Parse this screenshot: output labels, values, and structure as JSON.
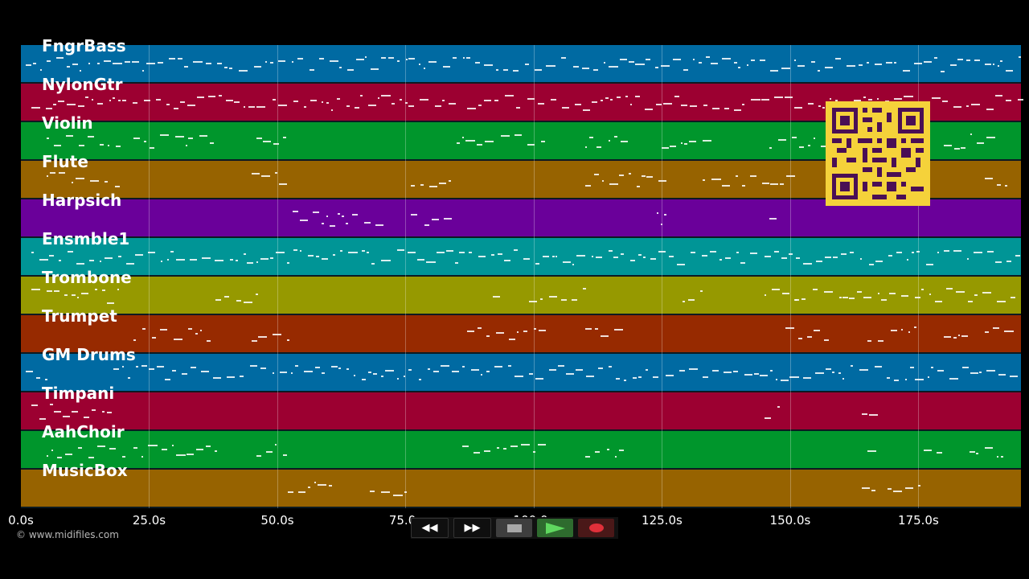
{
  "tracks": [
    {
      "name": "FngrBass",
      "color": "#006aa2"
    },
    {
      "name": "NylonGtr",
      "color": "#9c0031"
    },
    {
      "name": "Violin",
      "color": "#00962c"
    },
    {
      "name": "Flute",
      "color": "#976300"
    },
    {
      "name": "Harpsich",
      "color": "#6a009a"
    },
    {
      "name": "Ensmble1",
      "color": "#009596"
    },
    {
      "name": "Trombone",
      "color": "#969900"
    },
    {
      "name": "Trumpet",
      "color": "#972a00"
    },
    {
      "name": "GM Drums",
      "color": "#006aa2"
    },
    {
      "name": "Timpani",
      "color": "#9c0031"
    },
    {
      "name": "AahChoir",
      "color": "#00962c"
    },
    {
      "name": "MusicBox",
      "color": "#976300"
    }
  ],
  "timeline": {
    "ticks": [
      "0.0s",
      "25.0s",
      "50.0s",
      "75.0s",
      "100.0s",
      "125.0s",
      "150.0s",
      "175.0s"
    ],
    "tick_seconds": [
      0,
      25,
      50,
      75,
      100,
      125,
      150,
      175
    ],
    "duration_seconds": 195
  },
  "credit": "© www.midifiles.com",
  "transport": {
    "rewind": "◀◀",
    "fast_forward": "▶▶",
    "stop": "stop-icon",
    "play": "play-icon",
    "record": "record-icon"
  },
  "qr_code": "qr-code",
  "note_activity": [
    [
      [
        1,
        195
      ]
    ],
    [
      [
        2,
        18
      ],
      [
        19,
        85
      ],
      [
        87,
        195
      ]
    ],
    [
      [
        5,
        20
      ],
      [
        22,
        38
      ],
      [
        46,
        52
      ],
      [
        85,
        102
      ],
      [
        110,
        118
      ],
      [
        125,
        133
      ],
      [
        146,
        160
      ],
      [
        180,
        190
      ]
    ],
    [
      [
        5,
        20
      ],
      [
        45,
        52
      ],
      [
        76,
        84
      ],
      [
        110,
        125
      ],
      [
        133,
        150
      ],
      [
        188,
        192
      ]
    ],
    [
      [
        53,
        70
      ],
      [
        76,
        84
      ],
      [
        124,
        126
      ],
      [
        146,
        148
      ]
    ],
    [
      [
        2,
        195
      ]
    ],
    [
      [
        2,
        20
      ],
      [
        38,
        46
      ],
      [
        92,
        94
      ],
      [
        99,
        110
      ],
      [
        129,
        134
      ],
      [
        145,
        152
      ],
      [
        151,
        195
      ]
    ],
    [
      [
        22,
        37
      ],
      [
        45,
        52
      ],
      [
        87,
        102
      ],
      [
        110,
        118
      ],
      [
        149,
        158
      ],
      [
        165,
        175
      ],
      [
        180,
        185
      ],
      [
        188,
        192
      ]
    ],
    [
      [
        1,
        5
      ],
      [
        18,
        195
      ]
    ],
    [
      [
        2,
        18
      ],
      [
        145,
        148
      ],
      [
        164,
        166
      ]
    ],
    [
      [
        5,
        20
      ],
      [
        22,
        38
      ],
      [
        46,
        52
      ],
      [
        86,
        102
      ],
      [
        110,
        118
      ],
      [
        165,
        167
      ],
      [
        176,
        180
      ],
      [
        185,
        192
      ]
    ],
    [
      [
        52,
        60
      ],
      [
        68,
        75
      ],
      [
        164,
        166
      ],
      [
        169,
        176
      ]
    ]
  ]
}
